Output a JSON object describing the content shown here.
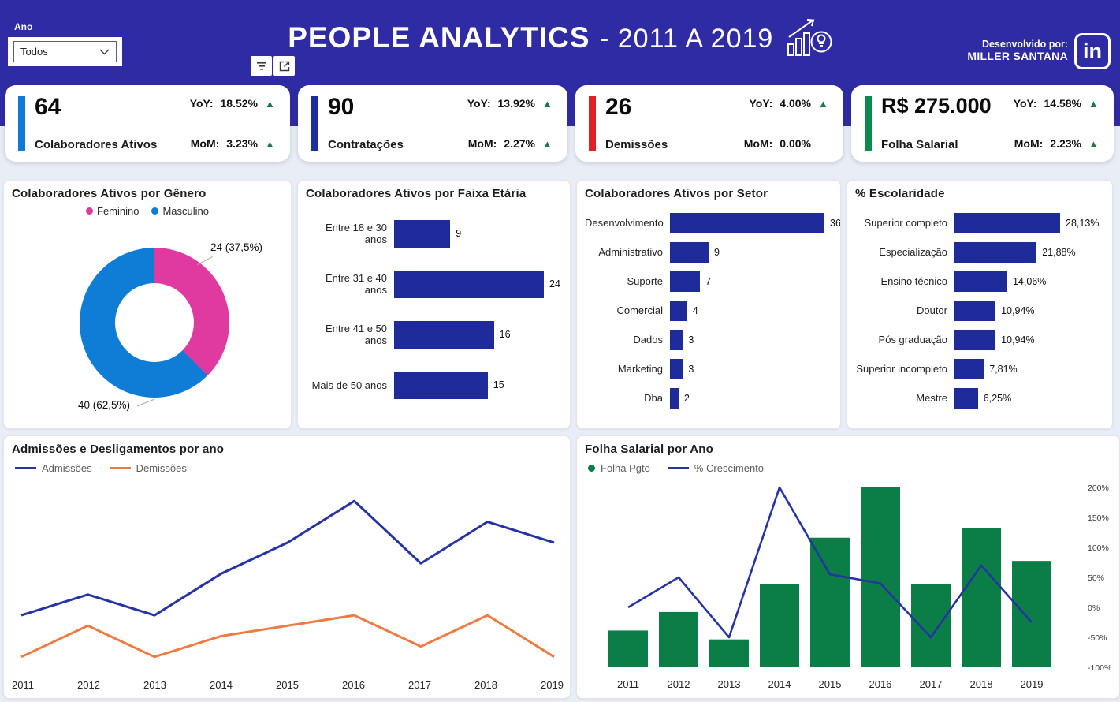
{
  "header": {
    "band_color": "#2F2BA4",
    "filter_label": "Ano",
    "filter_value": "Todos",
    "title": "PEOPLE ANALYTICS",
    "title_suffix": "- 2011 A 2019",
    "credit_line1": "Desenvolvido por:",
    "credit_line2": "MILLER SANTANA",
    "linkedin_text": "in"
  },
  "kpis": [
    {
      "value": "64",
      "label": "Colaboradores Ativos",
      "accent": "#1178D8",
      "yoy_label": "YoY:",
      "yoy_value": "18.52%",
      "yoy_arrow": "▲",
      "mom_label": "MoM:",
      "mom_value": "3.23%",
      "mom_arrow": "▲"
    },
    {
      "value": "90",
      "label": "Contratações",
      "accent": "#1E2D9E",
      "yoy_label": "YoY:",
      "yoy_value": "13.92%",
      "yoy_arrow": "▲",
      "mom_label": "MoM:",
      "mom_value": "2.27%",
      "mom_arrow": "▲"
    },
    {
      "value": "26",
      "label": "Demissões",
      "accent": "#E0211F",
      "yoy_label": "YoY:",
      "yoy_value": "4.00%",
      "yoy_arrow": "▲",
      "mom_label": "MoM:",
      "mom_value": "0.00%",
      "mom_arrow": ""
    },
    {
      "value": "R$ 275.000",
      "label": "Folha Salarial",
      "accent": "#0C8A50",
      "yoy_label": "YoY:",
      "yoy_value": "14.58%",
      "yoy_arrow": "▲",
      "mom_label": "MoM:",
      "mom_value": "2.23%",
      "mom_arrow": "▲"
    }
  ],
  "chart_data": [
    {
      "id": "genero",
      "type": "pie",
      "donut": true,
      "title": "Colaboradores Ativos por Gênero",
      "labels": [
        "Feminino",
        "Masculino"
      ],
      "values": [
        24,
        40
      ],
      "percent_labels": [
        "37,5%",
        "62,5%"
      ],
      "callouts": [
        "24 (37,5%)",
        "40 (62,5%)"
      ],
      "colors": [
        "#E0399F",
        "#0F7CD6"
      ],
      "legend_position": "top"
    },
    {
      "id": "faixa-etaria",
      "type": "bar",
      "orientation": "horizontal",
      "title": "Colaboradores Ativos por Faixa Etária",
      "categories": [
        "Entre 18 e 30 anos",
        "Entre 31 e 40 anos",
        "Entre 41 e 50 anos",
        "Mais de 50 anos"
      ],
      "values": [
        9,
        24,
        16,
        15
      ],
      "value_labels": [
        "9",
        "24",
        "16",
        "15"
      ],
      "bar_color": "#1F2B9B"
    },
    {
      "id": "setor",
      "type": "bar",
      "orientation": "horizontal",
      "title": "Colaboradores Ativos por Setor",
      "categories": [
        "Desenvolvimento",
        "Administrativo",
        "Suporte",
        "Comercial",
        "Dados",
        "Marketing",
        "Dba"
      ],
      "values": [
        36,
        9,
        7,
        4,
        3,
        3,
        2
      ],
      "value_labels": [
        "36",
        "9",
        "7",
        "4",
        "3",
        "3",
        "2"
      ],
      "bar_color": "#1F2B9B"
    },
    {
      "id": "escolaridade",
      "type": "bar",
      "orientation": "horizontal",
      "title": "% Escolaridade",
      "categories": [
        "Superior completo",
        "Especialização",
        "Ensino técnico",
        "Doutor",
        "Pós graduação",
        "Superior incompleto",
        "Mestre"
      ],
      "values": [
        28.13,
        21.88,
        14.06,
        10.94,
        10.94,
        7.81,
        6.25
      ],
      "value_labels": [
        "28,13%",
        "21,88%",
        "14,06%",
        "10,94%",
        "10,94%",
        "7,81%",
        "6,25%"
      ],
      "bar_color": "#1F2B9B"
    },
    {
      "id": "admissoes-demissoes",
      "type": "line",
      "title": "Admissões e Desligamentos por ano",
      "x": [
        "2011",
        "2012",
        "2013",
        "2014",
        "2015",
        "2016",
        "2017",
        "2018",
        "2019"
      ],
      "series": [
        {
          "name": "Admissões",
          "color": "#2633A2",
          "values": [
            5,
            7,
            5,
            9,
            12,
            16,
            10,
            14,
            12
          ]
        },
        {
          "name": "Demissões",
          "color": "#EC7C43",
          "values": [
            1,
            4,
            1,
            3,
            4,
            5,
            2,
            5,
            1
          ]
        }
      ],
      "values_estimated": true,
      "ylim": [
        0,
        17
      ],
      "y_axis_shown": false,
      "legend_position": "top"
    },
    {
      "id": "folha-ano",
      "type": "bar",
      "title": "Folha Salarial por Ano",
      "x": [
        "2011",
        "2012",
        "2013",
        "2014",
        "2015",
        "2016",
        "2017",
        "2018",
        "2019"
      ],
      "bar_series": {
        "name": "Folha Pgto",
        "color": "#0B7D47",
        "values": [
          95,
          143,
          72,
          215,
          335,
          465,
          215,
          360,
          275
        ]
      },
      "line_series": {
        "name": "% Crescimento",
        "color": "#2633A2",
        "values": [
          0,
          50,
          -50,
          200,
          55,
          40,
          -50,
          70,
          -25
        ]
      },
      "values_estimated": true,
      "right_axis_labels": [
        "200%",
        "150%",
        "100%",
        "50%",
        "0%",
        "-50%",
        "-100%"
      ],
      "right_axis_range": [
        -100,
        200
      ],
      "legend_position": "top"
    }
  ]
}
